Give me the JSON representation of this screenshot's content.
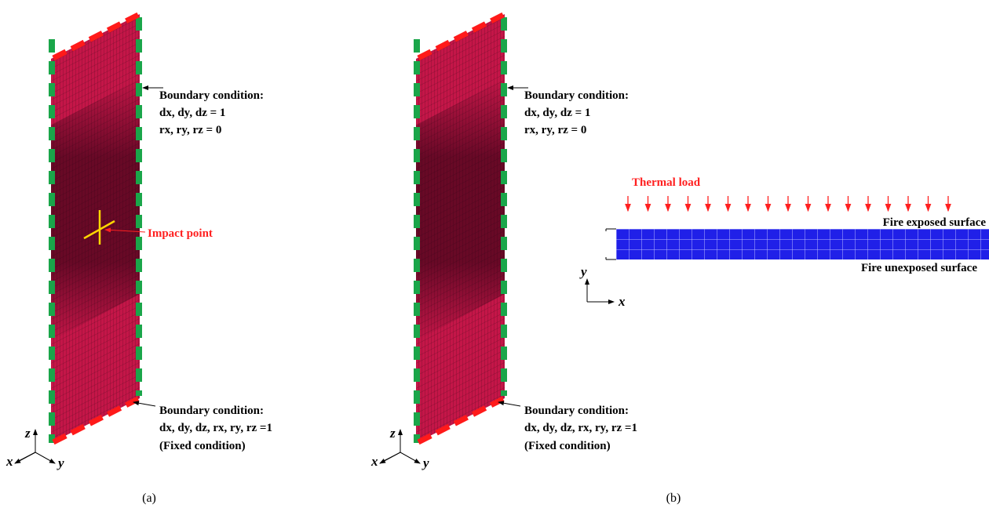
{
  "panels": [
    {
      "caption": "(a)",
      "top_boundary": {
        "title": "Boundary condition:",
        "lines": [
          "dx, dy, dz = 1",
          "rx, ry, rz = 0"
        ]
      },
      "bottom_boundary": {
        "title": "Boundary condition:",
        "lines": [
          "dx, dy, dz, rx, ry, rz =1",
          "(Fixed condition)"
        ]
      },
      "impact_label": "Impact point",
      "axes": [
        "z",
        "x",
        "y"
      ]
    },
    {
      "caption": "(b)",
      "top_boundary": {
        "title": "Boundary condition:",
        "lines": [
          "dx, dy, dz = 1",
          "rx, ry, rz = 0"
        ]
      },
      "bottom_boundary": {
        "title": "Boundary condition:",
        "lines": [
          "dx, dy, dz, rx, ry, rz =1",
          "(Fixed condition)"
        ]
      },
      "axes": [
        "z",
        "x",
        "y"
      ]
    }
  ],
  "section": {
    "load_label": "Thermal load",
    "top_surface": "Fire exposed surface",
    "bottom_surface": "Fire unexposed surface",
    "axes": [
      "y",
      "x"
    ]
  }
}
